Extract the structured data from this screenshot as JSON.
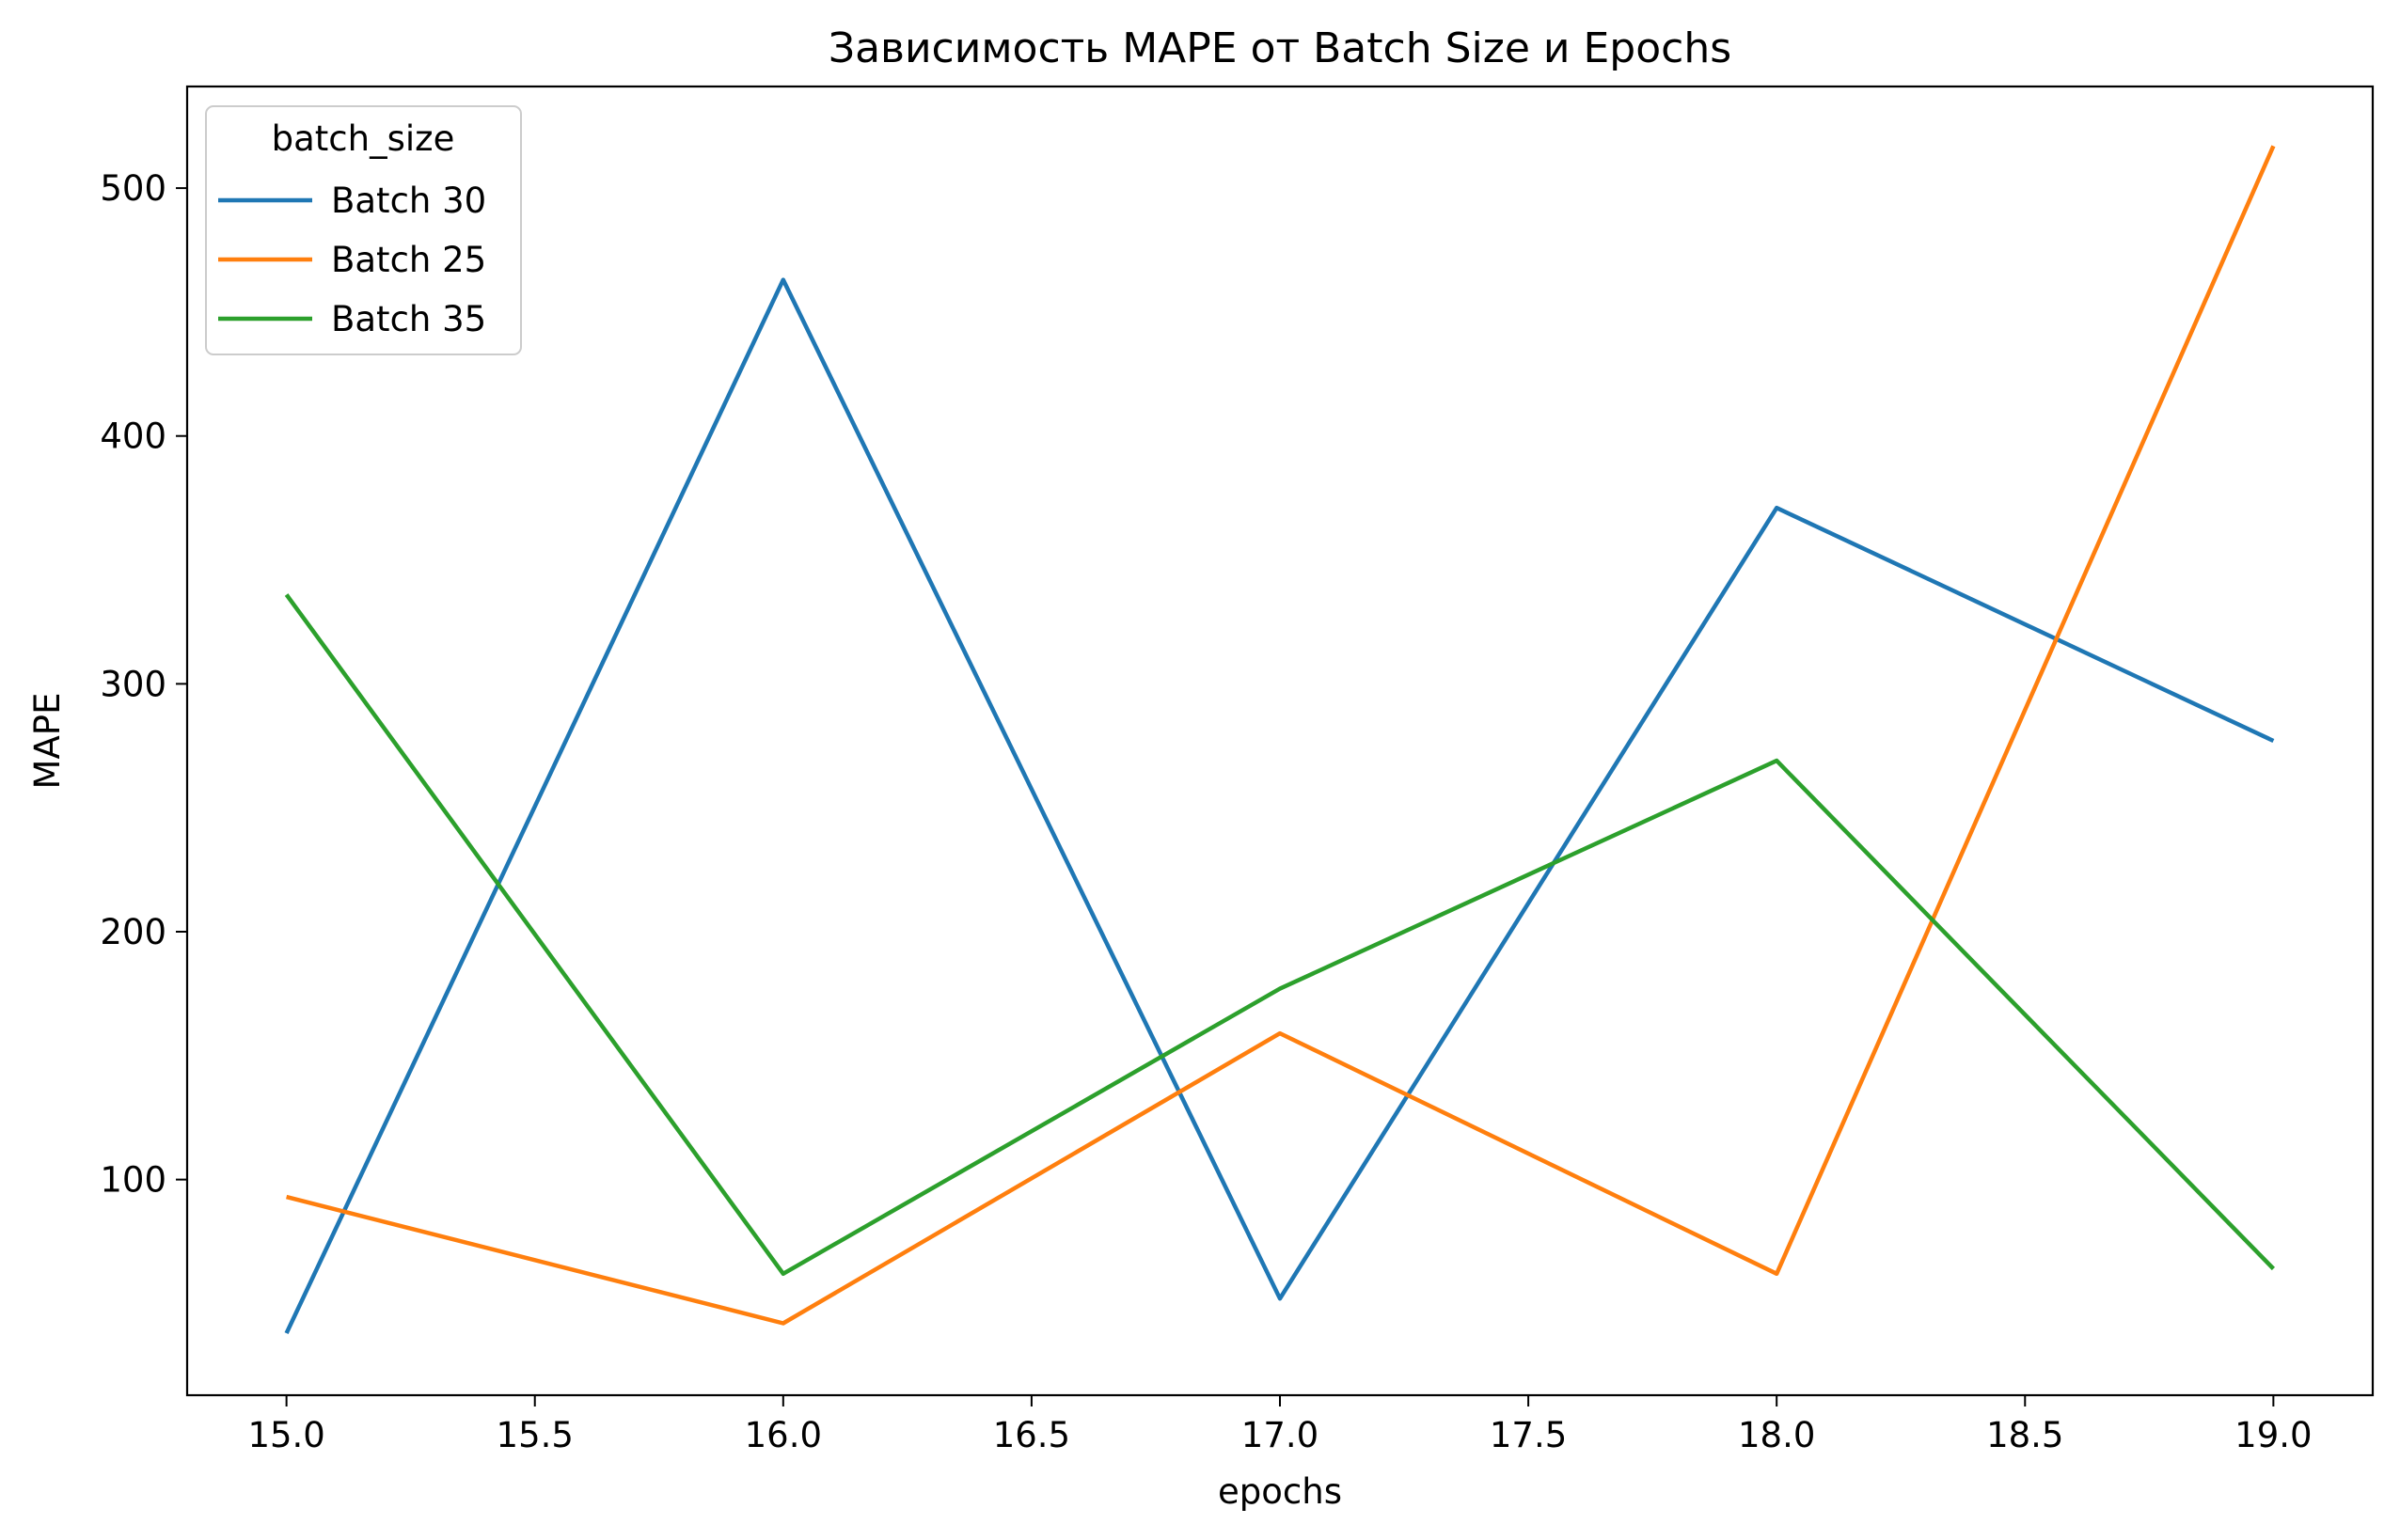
{
  "chart_data": {
    "type": "line",
    "title": "Зависимость MAPE от Batch Size и Epochs",
    "xlabel": "epochs",
    "ylabel": "MAPE",
    "xlim": [
      14.8,
      19.2
    ],
    "ylim": [
      13,
      541
    ],
    "x_ticks": [
      15.0,
      15.5,
      16.0,
      16.5,
      17.0,
      17.5,
      18.0,
      18.5,
      19.0
    ],
    "x_tick_labels": [
      "15.0",
      "15.5",
      "16.0",
      "16.5",
      "17.0",
      "17.5",
      "18.0",
      "18.5",
      "19.0"
    ],
    "y_ticks": [
      100,
      200,
      300,
      400,
      500
    ],
    "y_tick_labels": [
      "100",
      "200",
      "300",
      "400",
      "500"
    ],
    "grid": false,
    "legend": {
      "title": "batch_size",
      "position": "upper-left"
    },
    "x": [
      15,
      16,
      17,
      18,
      19
    ],
    "series": [
      {
        "name": "Batch 30",
        "color": "#1f77b4",
        "values": [
          38,
          463,
          52,
          371,
          277
        ]
      },
      {
        "name": "Batch 25",
        "color": "#ff7f0e",
        "values": [
          93,
          42,
          159,
          62,
          517
        ]
      },
      {
        "name": "Batch 35",
        "color": "#2ca02c",
        "values": [
          336,
          62,
          177,
          269,
          64
        ]
      }
    ]
  }
}
